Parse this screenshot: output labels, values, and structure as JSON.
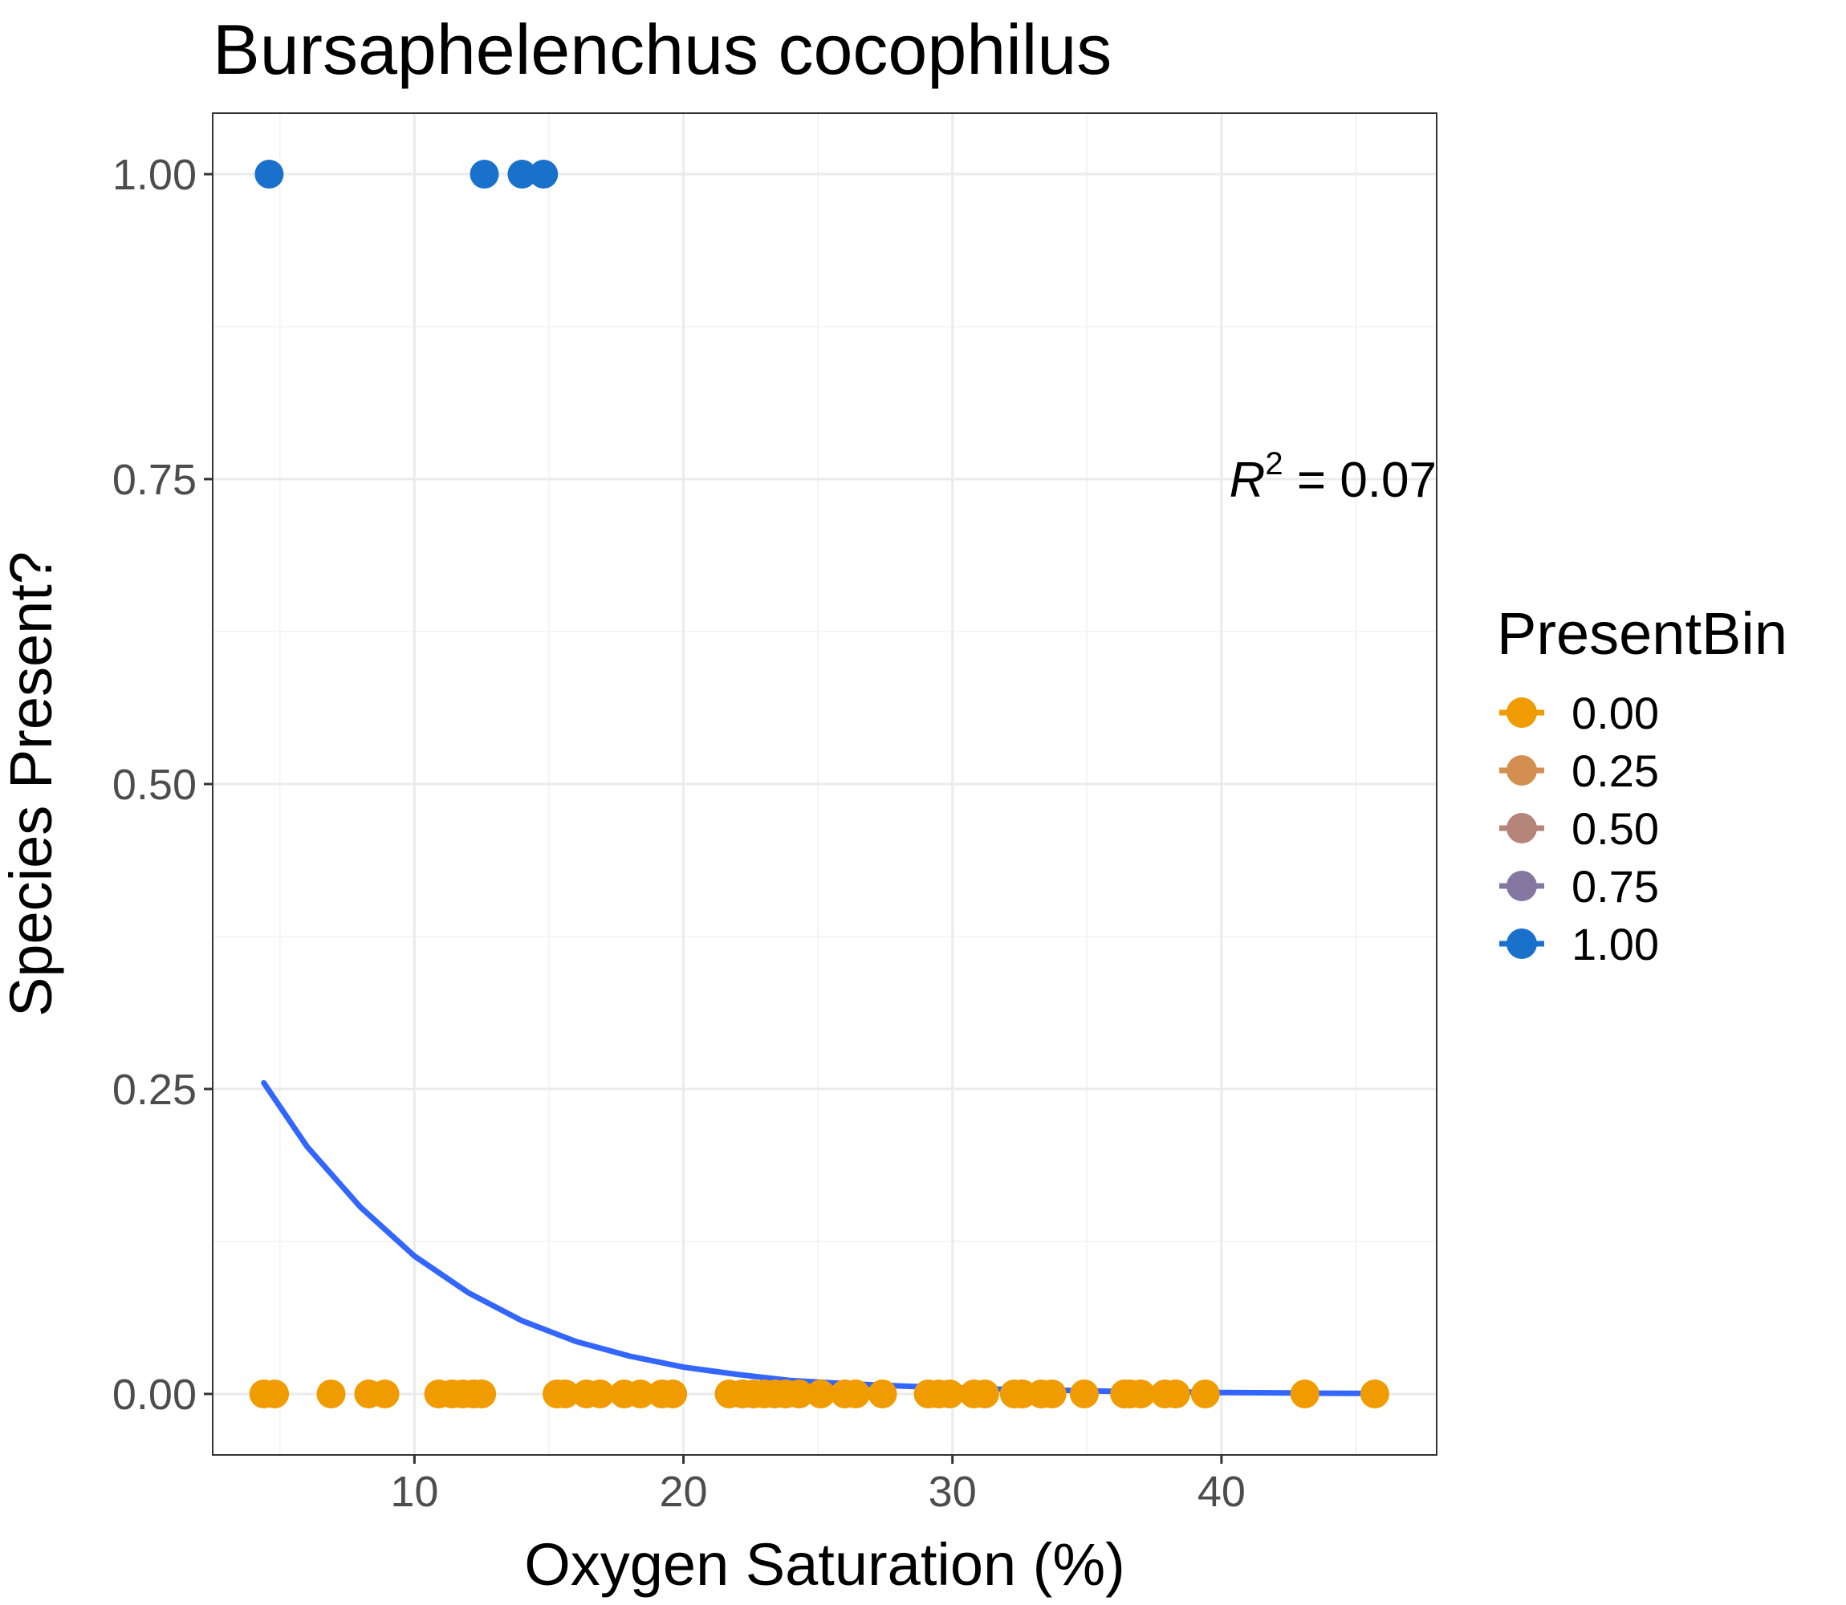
{
  "chart_data": {
    "type": "scatter",
    "title": "Bursaphelenchus cocophilus",
    "xlabel": "Oxygen Saturation (%)",
    "ylabel": "Species Present?",
    "xlim": [
      2.5,
      48
    ],
    "ylim": [
      -0.05,
      1.05
    ],
    "x_ticks": [
      10,
      20,
      30,
      40
    ],
    "x_tick_labels": [
      "10",
      "20",
      "30",
      "40"
    ],
    "y_ticks": [
      0,
      0.25,
      0.5,
      0.75,
      1.0
    ],
    "y_tick_labels": [
      "0.00",
      "0.25",
      "0.50",
      "0.75",
      "1.00"
    ],
    "grid": true,
    "legend": {
      "title": "PresentBin",
      "placement": "right",
      "entries": [
        {
          "label": "0.00",
          "color": "#F09B00"
        },
        {
          "label": "0.25",
          "color": "#D38E50"
        },
        {
          "label": "0.50",
          "color": "#B58579"
        },
        {
          "label": "0.75",
          "color": "#8478A3"
        },
        {
          "label": "1.00",
          "color": "#1A71CC"
        }
      ]
    },
    "annotation": {
      "text_main": "R",
      "superscript": "2",
      "text_rest": " = 0.07",
      "x": 48,
      "y": 0.75
    },
    "series": [
      {
        "color": "#1A71CC",
        "points": [
          {
            "x": 4.6,
            "y": 1
          },
          {
            "x": 12.6,
            "y": 1
          },
          {
            "x": 14.0,
            "y": 1
          },
          {
            "x": 14.8,
            "y": 1
          }
        ]
      },
      {
        "color": "#F09B00",
        "points": [
          {
            "x": 4.4,
            "y": 0
          },
          {
            "x": 4.8,
            "y": 0
          },
          {
            "x": 6.9,
            "y": 0
          },
          {
            "x": 8.3,
            "y": 0
          },
          {
            "x": 8.9,
            "y": 0
          },
          {
            "x": 10.9,
            "y": 0
          },
          {
            "x": 11.4,
            "y": 0
          },
          {
            "x": 11.8,
            "y": 0
          },
          {
            "x": 12.2,
            "y": 0
          },
          {
            "x": 12.5,
            "y": 0
          },
          {
            "x": 15.3,
            "y": 0
          },
          {
            "x": 15.6,
            "y": 0
          },
          {
            "x": 16.4,
            "y": 0
          },
          {
            "x": 16.9,
            "y": 0
          },
          {
            "x": 17.8,
            "y": 0
          },
          {
            "x": 18.4,
            "y": 0
          },
          {
            "x": 19.2,
            "y": 0
          },
          {
            "x": 19.6,
            "y": 0
          },
          {
            "x": 21.7,
            "y": 0
          },
          {
            "x": 22.2,
            "y": 0
          },
          {
            "x": 22.6,
            "y": 0
          },
          {
            "x": 23.0,
            "y": 0
          },
          {
            "x": 23.4,
            "y": 0
          },
          {
            "x": 23.8,
            "y": 0
          },
          {
            "x": 24.3,
            "y": 0
          },
          {
            "x": 25.1,
            "y": 0
          },
          {
            "x": 26.0,
            "y": 0
          },
          {
            "x": 26.4,
            "y": 0
          },
          {
            "x": 27.4,
            "y": 0
          },
          {
            "x": 29.1,
            "y": 0
          },
          {
            "x": 29.5,
            "y": 0
          },
          {
            "x": 29.9,
            "y": 0
          },
          {
            "x": 30.8,
            "y": 0
          },
          {
            "x": 31.2,
            "y": 0
          },
          {
            "x": 32.3,
            "y": 0
          },
          {
            "x": 32.6,
            "y": 0
          },
          {
            "x": 33.3,
            "y": 0
          },
          {
            "x": 33.7,
            "y": 0
          },
          {
            "x": 34.9,
            "y": 0
          },
          {
            "x": 36.4,
            "y": 0
          },
          {
            "x": 36.6,
            "y": 0
          },
          {
            "x": 37.0,
            "y": 0
          },
          {
            "x": 37.9,
            "y": 0
          },
          {
            "x": 38.3,
            "y": 0
          },
          {
            "x": 39.4,
            "y": 0
          },
          {
            "x": 43.1,
            "y": 0
          },
          {
            "x": 45.7,
            "y": 0
          }
        ]
      }
    ],
    "fit_line": {
      "color": "#3366FF",
      "x": [
        4.4,
        6,
        8,
        10,
        12,
        14,
        16,
        18,
        20,
        22,
        24,
        26,
        28,
        30,
        32,
        34,
        36,
        38,
        40,
        42,
        44,
        45.7
      ],
      "y": [
        0.255,
        0.203,
        0.153,
        0.113,
        0.083,
        0.06,
        0.043,
        0.031,
        0.022,
        0.016,
        0.011,
        0.0085,
        0.0066,
        0.005,
        0.0038,
        0.003,
        0.0022,
        0.0017,
        0.0012,
        0.0009,
        0.0006,
        0.0004
      ]
    }
  }
}
